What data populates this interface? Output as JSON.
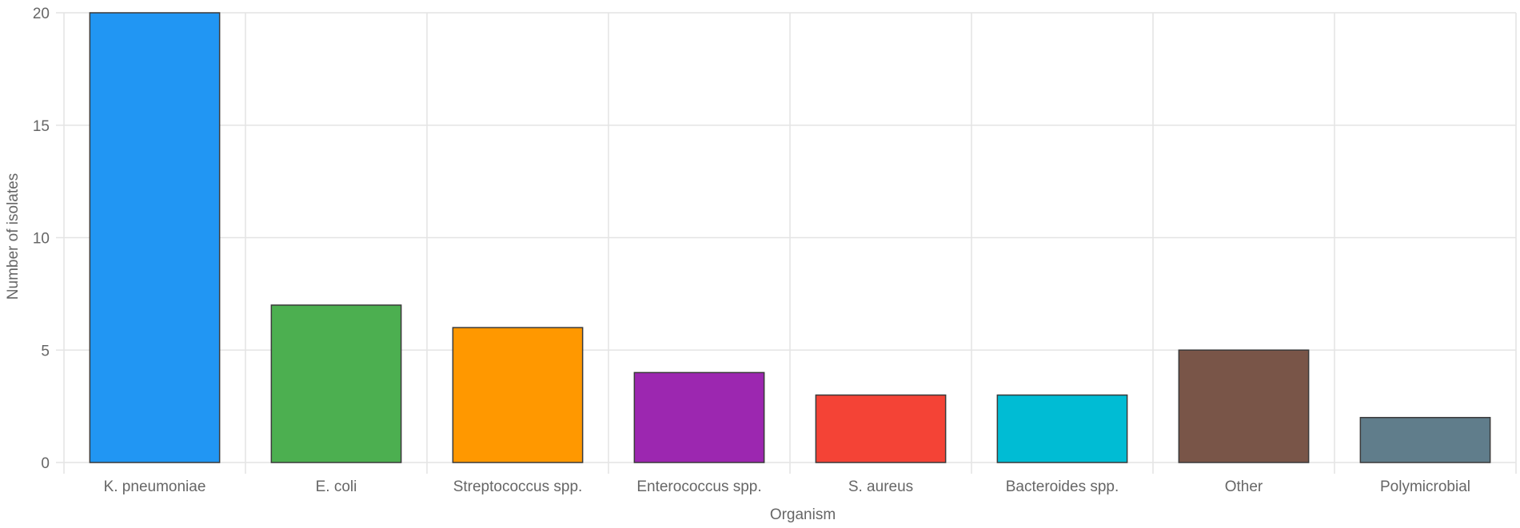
{
  "chart_data": {
    "type": "bar",
    "title": "",
    "xlabel": "Organism",
    "ylabel": "Number of isolates",
    "categories": [
      "K. pneumoniae",
      "E. coli",
      "Streptococcus spp.",
      "Enterococcus spp.",
      "S. aureus",
      "Bacteroides spp.",
      "Other",
      "Polymicrobial"
    ],
    "values": [
      20,
      7,
      6,
      4,
      3,
      3,
      5,
      2
    ],
    "colors": [
      "#2196F3",
      "#4CAF50",
      "#FF9800",
      "#9C27B0",
      "#F44336",
      "#00BCD4",
      "#795548",
      "#607D8B"
    ],
    "ylim": [
      0,
      20
    ],
    "yticks": [
      0,
      5,
      10,
      15,
      20
    ],
    "grid": true,
    "legend": "none"
  }
}
